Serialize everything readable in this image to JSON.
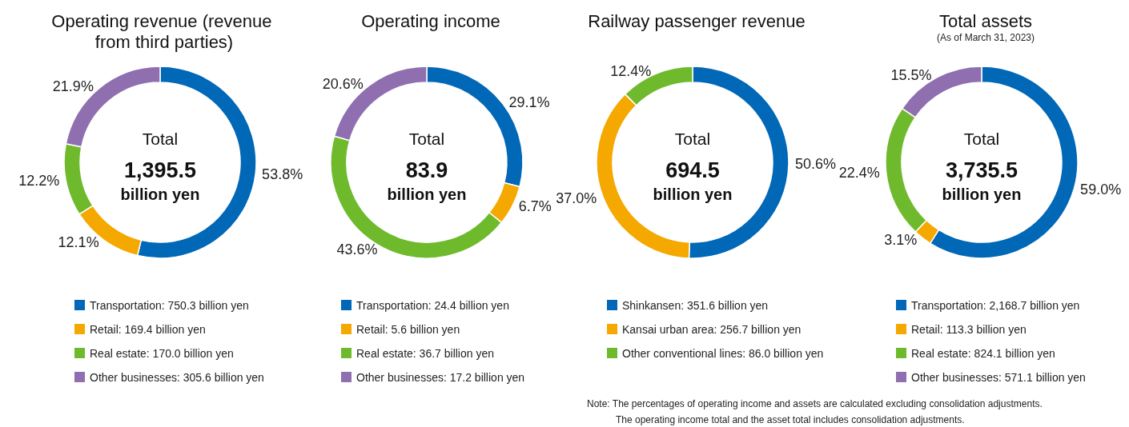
{
  "chart_data": [
    {
      "type": "donut",
      "title": "Operating revenue (revenue from third parties)",
      "categories": [
        "Transportation: 750.3 billion yen",
        "Retail: 169.4 billion yen",
        "Real estate: 170.0 billion yen",
        "Other businesses: 305.6 billion yen"
      ],
      "values": [
        53.8,
        12.1,
        12.2,
        21.9
      ],
      "value_labels": [
        "53.8%",
        "12.1%",
        "12.2%",
        "21.9%"
      ],
      "colors": [
        "#0068b7",
        "#f5a800",
        "#6fba2c",
        "#8f6fb0"
      ],
      "legend": "bottom",
      "annotations": [
        "Total",
        "1,395.5",
        "billion yen"
      ]
    },
    {
      "type": "donut",
      "title": "Operating income",
      "categories": [
        "Transportation: 24.4 billion yen",
        "Retail: 5.6 billion yen",
        "Real estate: 36.7 billion yen",
        "Other businesses: 17.2 billion yen"
      ],
      "values": [
        29.1,
        6.7,
        43.6,
        20.6
      ],
      "value_labels": [
        "29.1%",
        "6.7%",
        "43.6%",
        "20.6%"
      ],
      "colors": [
        "#0068b7",
        "#f5a800",
        "#6fba2c",
        "#8f6fb0"
      ],
      "legend": "bottom",
      "annotations": [
        "Total",
        "83.9",
        "billion yen"
      ]
    },
    {
      "type": "donut",
      "title": "Railway passenger revenue",
      "categories": [
        "Shinkansen: 351.6 billion yen",
        "Kansai urban area: 256.7 billion yen",
        "Other conventional lines: 86.0 billion yen"
      ],
      "values": [
        50.6,
        37.0,
        12.4
      ],
      "value_labels": [
        "50.6%",
        "37.0%",
        "12.4%"
      ],
      "colors": [
        "#0068b7",
        "#f5a800",
        "#6fba2c"
      ],
      "legend": "bottom",
      "annotations": [
        "Total",
        "694.5",
        "billion yen"
      ]
    },
    {
      "type": "donut",
      "title": "Total assets",
      "subtitle": "(As of March 31, 2023)",
      "categories": [
        "Transportation: 2,168.7 billion yen",
        "Retail: 113.3 billion yen",
        "Real estate: 824.1 billion yen",
        "Other businesses: 571.1 billion yen"
      ],
      "values": [
        59.0,
        3.1,
        22.4,
        15.5
      ],
      "value_labels": [
        "59.0%",
        "3.1%",
        "22.4%",
        "15.5%"
      ],
      "colors": [
        "#0068b7",
        "#f5a800",
        "#6fba2c",
        "#8f6fb0"
      ],
      "legend": "bottom",
      "annotations": [
        "Total",
        "3,735.5",
        "billion yen",
        "Note: The percentages of operating income and assets are calculated excluding consolidation adjustments.",
        "The operating income total and the asset total includes consolidation adjustments."
      ]
    }
  ]
}
